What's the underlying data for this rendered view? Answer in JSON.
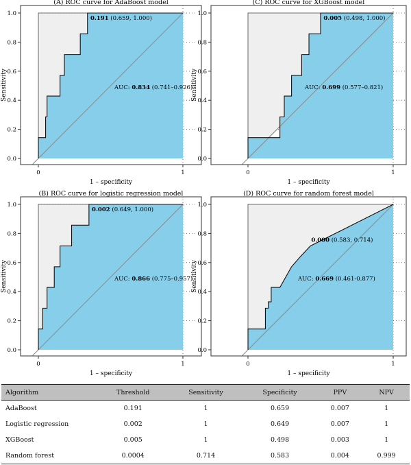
{
  "chart_data": [
    {
      "type": "line",
      "title": "(A) ROC curve for AdaBoost model",
      "xlabel": "1 – specificity",
      "ylabel": "Sensitivity",
      "xlim": [
        0,
        1
      ],
      "ylim": [
        0,
        1
      ],
      "x_ticks": [
        "0",
        "1"
      ],
      "y_ticks": [
        "0.0",
        "0.2",
        "0.4",
        "0.6",
        "0.8",
        "1.0"
      ],
      "threshold_label": "0.191",
      "threshold_coords": "(0.659, 1.000)",
      "threshold_point": [
        0.341,
        1.0
      ],
      "auc_label": "AUC:",
      "auc_value": "0.834",
      "auc_ci": "(0.741–0.926)",
      "curve": [
        [
          0,
          0
        ],
        [
          0,
          0.143
        ],
        [
          0.05,
          0.143
        ],
        [
          0.05,
          0.286
        ],
        [
          0.06,
          0.286
        ],
        [
          0.06,
          0.429
        ],
        [
          0.15,
          0.429
        ],
        [
          0.15,
          0.571
        ],
        [
          0.18,
          0.571
        ],
        [
          0.18,
          0.714
        ],
        [
          0.29,
          0.714
        ],
        [
          0.29,
          0.857
        ],
        [
          0.34,
          0.857
        ],
        [
          0.34,
          1.0
        ],
        [
          1,
          1
        ]
      ]
    },
    {
      "type": "line",
      "title": "(C) ROC curve for XGBoost model",
      "xlabel": "1 – specificity",
      "ylabel": "Sensitivity",
      "xlim": [
        0,
        1
      ],
      "ylim": [
        0,
        1
      ],
      "x_ticks": [
        "0",
        "1"
      ],
      "y_ticks": [
        "0.0",
        "0.2",
        "0.4",
        "0.6",
        "0.8",
        "1.0"
      ],
      "threshold_label": "0.005",
      "threshold_coords": "(0.498, 1.000)",
      "threshold_point": [
        0.502,
        1.0
      ],
      "auc_label": "AUC:",
      "auc_value": "0.699",
      "auc_ci": "(0.577–0.821)",
      "curve": [
        [
          0,
          0
        ],
        [
          0,
          0.143
        ],
        [
          0.22,
          0.143
        ],
        [
          0.22,
          0.286
        ],
        [
          0.25,
          0.286
        ],
        [
          0.25,
          0.429
        ],
        [
          0.3,
          0.429
        ],
        [
          0.3,
          0.571
        ],
        [
          0.37,
          0.571
        ],
        [
          0.37,
          0.714
        ],
        [
          0.42,
          0.714
        ],
        [
          0.42,
          0.857
        ],
        [
          0.5,
          0.857
        ],
        [
          0.5,
          1.0
        ],
        [
          1,
          1
        ]
      ]
    },
    {
      "type": "line",
      "title": "(B) ROC curve for logistic regression model",
      "xlabel": "1 – specificity",
      "ylabel": "Sensitivity",
      "xlim": [
        0,
        1
      ],
      "ylim": [
        0,
        1
      ],
      "x_ticks": [
        "0",
        "1"
      ],
      "y_ticks": [
        "0.0",
        "0.2",
        "0.4",
        "0.6",
        "0.8",
        "1.0"
      ],
      "threshold_label": "0.002",
      "threshold_coords": "(0.649, 1.000)",
      "threshold_point": [
        0.351,
        1.0
      ],
      "auc_label": "AUC:",
      "auc_value": "0.866",
      "auc_ci": "(0.775–0.957)",
      "curve": [
        [
          0,
          0
        ],
        [
          0,
          0.143
        ],
        [
          0.03,
          0.143
        ],
        [
          0.03,
          0.286
        ],
        [
          0.06,
          0.286
        ],
        [
          0.06,
          0.429
        ],
        [
          0.11,
          0.429
        ],
        [
          0.11,
          0.571
        ],
        [
          0.15,
          0.571
        ],
        [
          0.15,
          0.714
        ],
        [
          0.23,
          0.714
        ],
        [
          0.23,
          0.857
        ],
        [
          0.35,
          0.857
        ],
        [
          0.35,
          1.0
        ],
        [
          1,
          1
        ]
      ]
    },
    {
      "type": "line",
      "title": "(D) ROC curve for random forest model",
      "xlabel": "1 – specificity",
      "ylabel": "Sensitivity",
      "xlim": [
        0,
        1
      ],
      "ylim": [
        0,
        1
      ],
      "x_ticks": [
        "0",
        "1"
      ],
      "y_ticks": [
        "0.0",
        "0.2",
        "0.4",
        "0.6",
        "0.8",
        "1.0"
      ],
      "threshold_label": "0.000",
      "threshold_coords": "(0.583, 0.714)",
      "threshold_point": [
        0.417,
        0.714
      ],
      "auc_label": "AUC:",
      "auc_value": "0.669",
      "auc_ci": "(0.461-0.877)",
      "curve": [
        [
          0,
          0
        ],
        [
          0,
          0.143
        ],
        [
          0.12,
          0.143
        ],
        [
          0.12,
          0.286
        ],
        [
          0.14,
          0.286
        ],
        [
          0.14,
          0.33
        ],
        [
          0.16,
          0.33
        ],
        [
          0.16,
          0.429
        ],
        [
          0.22,
          0.429
        ],
        [
          0.3,
          0.571
        ],
        [
          0.36,
          0.64
        ],
        [
          0.43,
          0.714
        ],
        [
          1,
          1
        ]
      ]
    }
  ],
  "table": {
    "headers": [
      "Algorithm",
      "Threshold",
      "Sensitivity",
      "Specificity",
      "PPV",
      "NPV"
    ],
    "rows": [
      [
        "AdaBoost",
        "0.191",
        "1",
        "0.659",
        "0.007",
        "1"
      ],
      [
        "Logistic regression",
        "0.002",
        "1",
        "0.649",
        "0.007",
        "1"
      ],
      [
        "XGBoost",
        "0.005",
        "1",
        "0.498",
        "0.003",
        "1"
      ],
      [
        "Random forest",
        "0.0004",
        "0.714",
        "0.583",
        "0.004",
        "0.999"
      ]
    ]
  }
}
